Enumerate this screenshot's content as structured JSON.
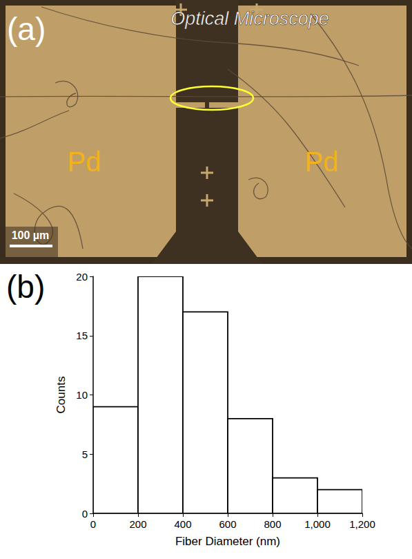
{
  "image_panel": {
    "letter": "(a)",
    "title": "Optical Microscope",
    "labels": [
      "Pd",
      "Pd"
    ],
    "scale_bar": "100 µm"
  },
  "chart_data": {
    "type": "histogram",
    "panel_label": "(b)",
    "x_label": "Fiber Diameter (nm)",
    "y_label": "Counts",
    "bins": [
      0,
      200,
      400,
      600,
      800,
      1000,
      1200
    ],
    "values": [
      9,
      20,
      17,
      8,
      3,
      2
    ],
    "color": "#ffffff",
    "xlim": [
      0,
      1200
    ],
    "xticks": [
      0,
      200,
      400,
      600,
      800,
      1000,
      1200
    ],
    "ylim": [
      0,
      20
    ],
    "yticks": [
      0,
      5,
      10,
      15,
      20
    ],
    "grid": false
  }
}
